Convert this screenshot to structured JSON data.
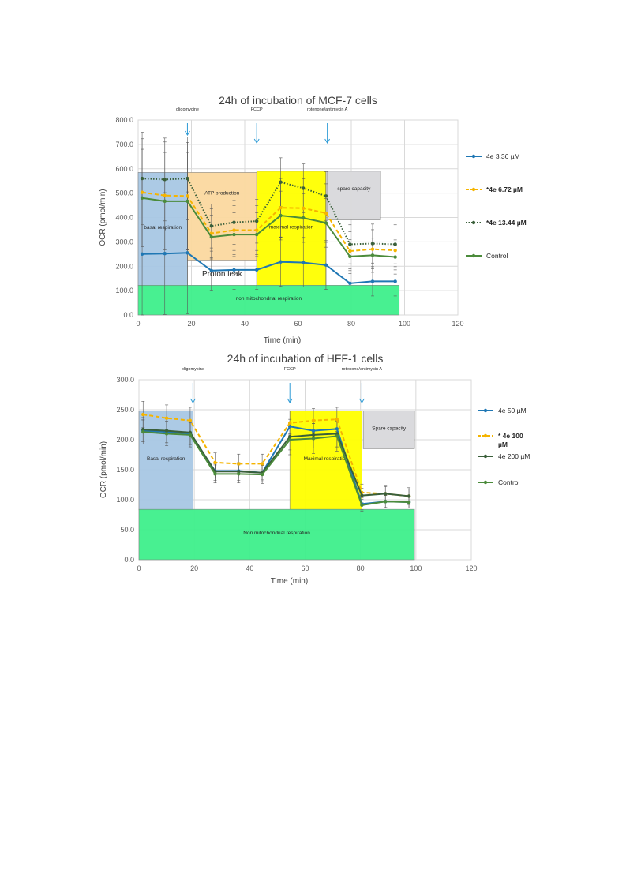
{
  "chart_data": [
    {
      "type": "line",
      "title": "24h of incubation of MCF-7 cells",
      "xlabel": "Time (min)",
      "ylabel": "OCR (pmol/min)",
      "xlim": [
        0,
        120
      ],
      "ylim": [
        0,
        800
      ],
      "xticks": [
        "0",
        "20",
        "40",
        "60",
        "80",
        "100",
        "120"
      ],
      "yticks": [
        "0.0",
        "100.0",
        "200.0",
        "300.0",
        "400.0",
        "500.0",
        "600.0",
        "700.0",
        "800.0"
      ],
      "grid": true,
      "legend_position": "right",
      "x": [
        1.5,
        10,
        18.5,
        27.5,
        36,
        44.5,
        53.5,
        62,
        70.5,
        79.5,
        88,
        96.5
      ],
      "series": [
        {
          "name": "4e 3.36 µM",
          "color": "#1f77b4",
          "style": "solid",
          "values": [
            250,
            252,
            255,
            182,
            185,
            185,
            218,
            215,
            205,
            130,
            138,
            138
          ],
          "errors": [
            250,
            250,
            250,
            80,
            80,
            80,
            100,
            100,
            100,
            60,
            60,
            60
          ]
        },
        {
          "name": "*4e 6.72 µM",
          "color": "#f5b400",
          "style": "dashed",
          "values": [
            503,
            490,
            488,
            335,
            348,
            348,
            440,
            438,
            418,
            262,
            270,
            265
          ],
          "errors": [
            220,
            220,
            220,
            100,
            100,
            100,
            120,
            120,
            120,
            80,
            80,
            80
          ]
        },
        {
          "name": "*4e 13.44 µM",
          "color": "#3a5f3a",
          "style": "dotted",
          "values": [
            560,
            556,
            560,
            365,
            380,
            385,
            545,
            520,
            488,
            290,
            293,
            290
          ],
          "errors": [
            190,
            170,
            170,
            90,
            90,
            90,
            100,
            100,
            100,
            80,
            80,
            80
          ]
        },
        {
          "name": "Control",
          "color": "#4b8b3b",
          "style": "solid",
          "values": [
            480,
            467,
            467,
            320,
            330,
            330,
            408,
            398,
            378,
            240,
            245,
            238
          ],
          "errors": [
            200,
            200,
            200,
            90,
            90,
            90,
            100,
            100,
            100,
            70,
            70,
            70
          ]
        }
      ],
      "regions": [
        {
          "label": "basal respiration",
          "x0": 0,
          "x1": 18.5,
          "y0": 120,
          "y1": 585,
          "color": "#a8c8e4"
        },
        {
          "label": "ATP production",
          "x0": 18.5,
          "x1": 44.5,
          "y0": 225,
          "y1": 585,
          "color": "#fbd9a0"
        },
        {
          "label": "maximal respiration",
          "x0": 44.5,
          "x1": 70.5,
          "y0": 120,
          "y1": 590,
          "color": "#ffff00"
        },
        {
          "label": "spare capacity",
          "x0": 71,
          "x1": 91,
          "y0": 390,
          "y1": 590,
          "color": "#d9d9dc"
        },
        {
          "label": "non mitochondrial respiration",
          "x0": 0,
          "x1": 98,
          "y0": 0,
          "y1": 122,
          "color": "#3ff08c"
        }
      ],
      "annotations": [
        {
          "text": "oligomycine",
          "x": 18.5
        },
        {
          "text": "FCCP",
          "x": 44.5
        },
        {
          "text": "rotenone/antimycin A",
          "x": 71
        }
      ],
      "extra_labels": [
        {
          "text": "Proton leak",
          "x": 31.5,
          "y": 158
        }
      ]
    },
    {
      "type": "line",
      "title": "24h of incubation of HFF-1 cells",
      "xlabel": "Time (min)",
      "ylabel": "OCR (pmol/min)",
      "xlim": [
        0,
        120
      ],
      "ylim": [
        0,
        300
      ],
      "xticks": [
        "0",
        "20",
        "40",
        "60",
        "80",
        "100",
        "120"
      ],
      "yticks": [
        "0.0",
        "50.0",
        "100.0",
        "150.0",
        "200.0",
        "250.0",
        "300.0"
      ],
      "grid": true,
      "legend_position": "right",
      "x": [
        1.5,
        10,
        18.5,
        27.5,
        36,
        44.5,
        54.5,
        63,
        71.5,
        80.5,
        89,
        97.5
      ],
      "series": [
        {
          "name": "4e 50 µM",
          "color": "#1f77b4",
          "style": "solid",
          "values": [
            215,
            213,
            210,
            148,
            148,
            145,
            222,
            215,
            218,
            93,
            97,
            96
          ],
          "errors": [
            18,
            18,
            18,
            12,
            12,
            12,
            12,
            12,
            12,
            10,
            10,
            10
          ]
        },
        {
          "name": "* 4e 100 µM",
          "color": "#f5b400",
          "style": "dashed",
          "values": [
            242,
            236,
            232,
            162,
            160,
            160,
            228,
            232,
            234,
            112,
            110,
            106
          ],
          "errors": [
            22,
            22,
            22,
            16,
            16,
            16,
            20,
            20,
            20,
            14,
            14,
            14
          ]
        },
        {
          "name": "4e 200 µM",
          "color": "#3a5f3a",
          "style": "solid",
          "values": [
            217,
            215,
            212,
            147,
            147,
            145,
            205,
            208,
            210,
            107,
            110,
            106
          ],
          "errors": [
            20,
            20,
            20,
            15,
            15,
            15,
            22,
            22,
            22,
            12,
            12,
            12
          ]
        },
        {
          "name": "Control",
          "color": "#4b8b3b",
          "style": "solid",
          "values": [
            213,
            210,
            208,
            143,
            143,
            142,
            200,
            202,
            206,
            91,
            97,
            96
          ],
          "errors": [
            20,
            20,
            20,
            15,
            15,
            15,
            25,
            25,
            25,
            10,
            10,
            10
          ]
        }
      ],
      "regions": [
        {
          "label": "Basal respiration",
          "x0": 0,
          "x1": 19.5,
          "y0": 83,
          "y1": 248,
          "color": "#a8c8e4"
        },
        {
          "label": "Maximal respiration",
          "x0": 54.5,
          "x1": 80.5,
          "y0": 83,
          "y1": 248,
          "color": "#ffff00"
        },
        {
          "label": "Spare capacity",
          "x0": 81,
          "x1": 99.5,
          "y0": 185,
          "y1": 248,
          "color": "#d9d9dc"
        },
        {
          "label": "Non mitochondrial respiration",
          "x0": 0,
          "x1": 99.5,
          "y0": 0,
          "y1": 84,
          "color": "#3ff08c"
        }
      ],
      "annotations": [
        {
          "text": "oligomycine",
          "x": 19.5
        },
        {
          "text": "FCCP",
          "x": 54.5
        },
        {
          "text": "rotenone/antimycin A",
          "x": 80.5
        }
      ],
      "extra_labels": []
    }
  ]
}
